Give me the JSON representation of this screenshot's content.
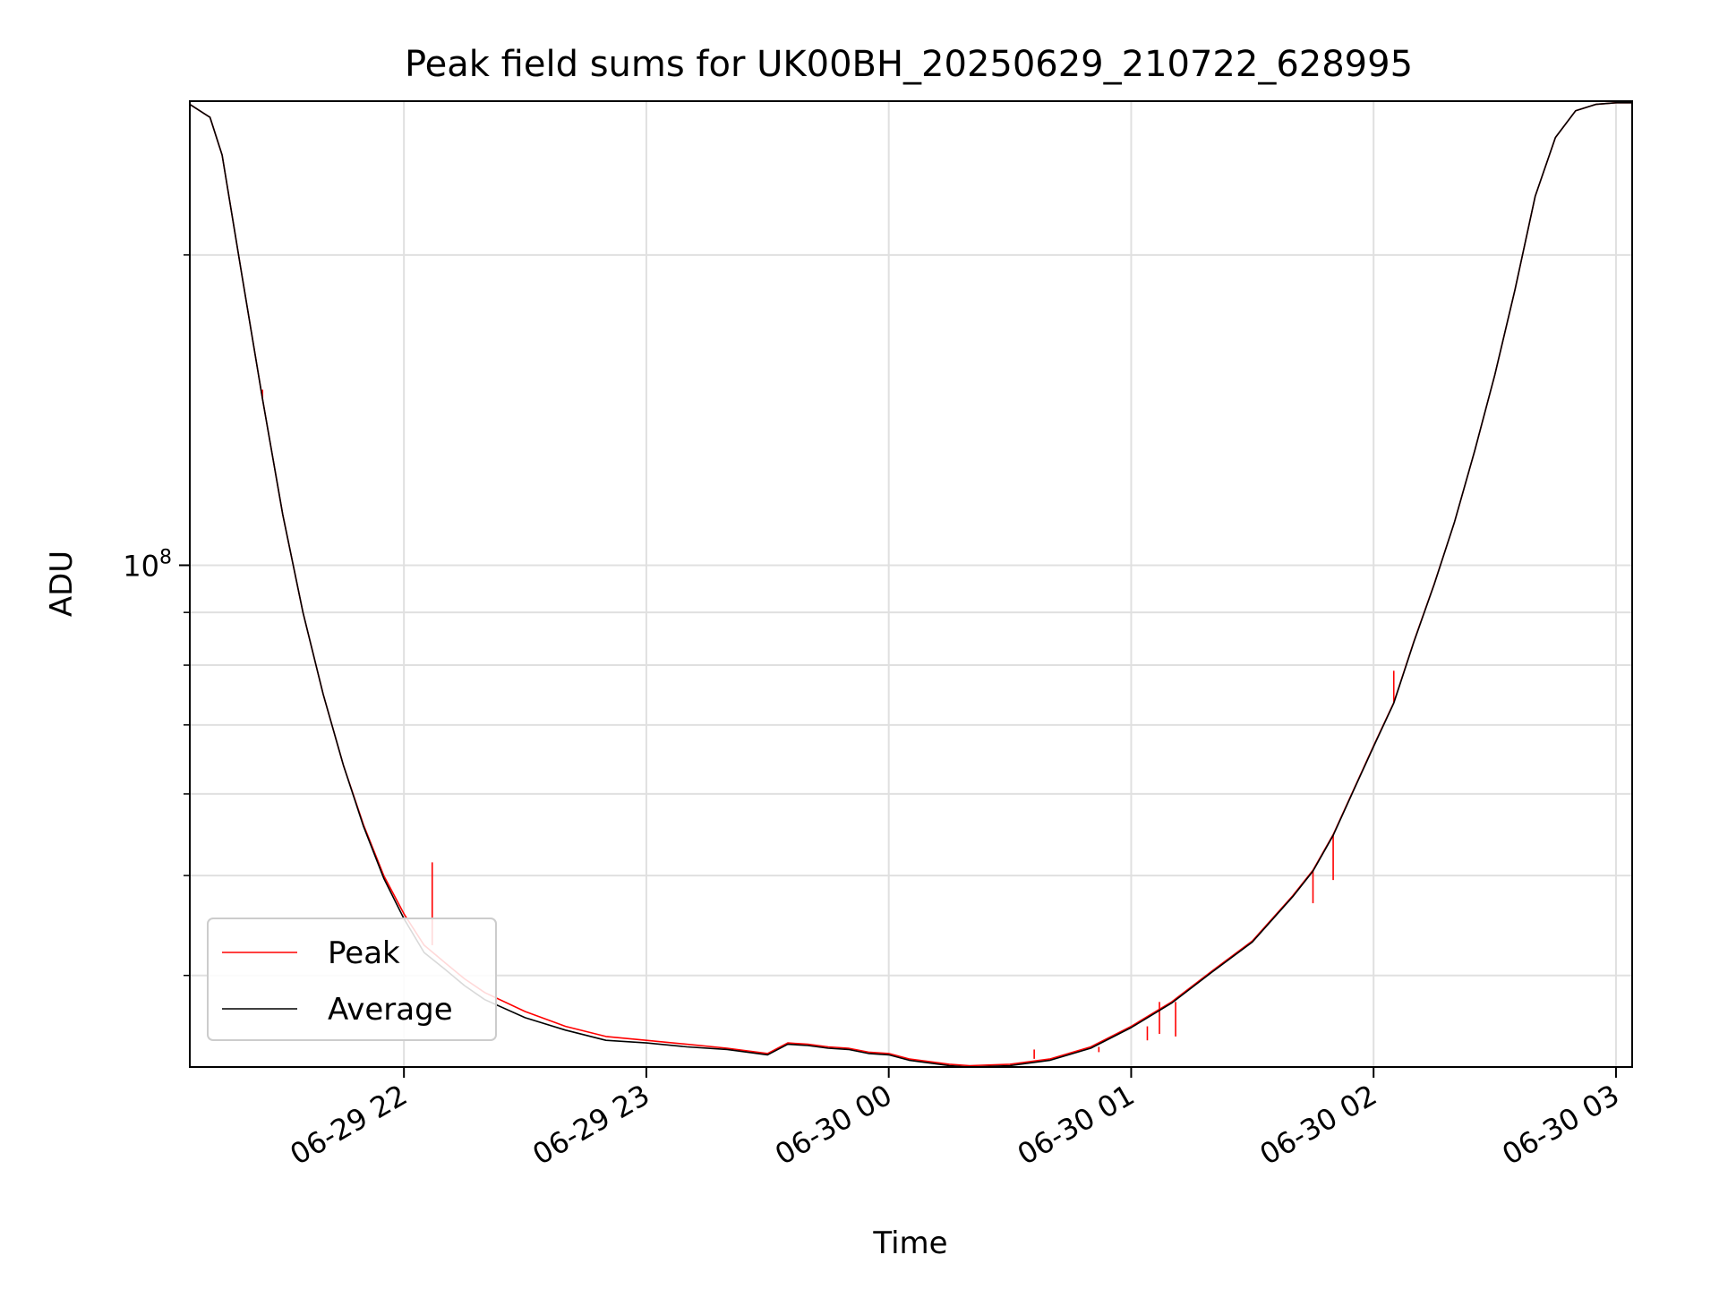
{
  "chart_data": {
    "type": "line",
    "title": "Peak field sums for UK00BH_20250629_210722_628995",
    "xlabel": "Time",
    "ylabel": "ADU",
    "yscale": "log",
    "ylim": [
      32600000,
      282000000
    ],
    "xlim": [
      "2025-06-29 21:07",
      "2025-06-30 03:04"
    ],
    "xtick_values": [
      "2025-06-29 22:00",
      "2025-06-29 23:00",
      "2025-06-30 00:00",
      "2025-06-30 01:00",
      "2025-06-30 02:00",
      "2025-06-30 03:00"
    ],
    "xtick_labels": [
      "06-29 22",
      "06-29 23",
      "06-30 00",
      "06-30 01",
      "06-30 02",
      "06-30 03"
    ],
    "ytick_major_values": [
      100000000
    ],
    "ytick_major_labels": [
      {
        "base": "10",
        "exp": "8"
      }
    ],
    "ytick_minor_values": [
      40000000,
      50000000,
      60000000,
      70000000,
      80000000,
      90000000,
      200000000
    ],
    "grid": true,
    "legend_position": "lower-left",
    "series": [
      {
        "name": "Peak",
        "color": "#ff0000",
        "x": [
          "2025-06-29 21:07",
          "2025-06-29 21:12",
          "2025-06-29 21:15",
          "2025-06-29 21:20",
          "2025-06-29 21:25",
          "2025-06-29 21:30",
          "2025-06-29 21:35",
          "2025-06-29 21:40",
          "2025-06-29 21:45",
          "2025-06-29 21:50",
          "2025-06-29 21:55",
          "2025-06-29 22:00",
          "2025-06-29 22:05",
          "2025-06-29 22:10",
          "2025-06-29 22:15",
          "2025-06-29 22:20",
          "2025-06-29 22:30",
          "2025-06-29 22:40",
          "2025-06-29 22:50",
          "2025-06-29 23:00",
          "2025-06-29 23:10",
          "2025-06-29 23:20",
          "2025-06-29 23:30",
          "2025-06-29 23:35",
          "2025-06-29 23:40",
          "2025-06-29 23:45",
          "2025-06-29 23:50",
          "2025-06-29 23:55",
          "2025-06-30 00:00",
          "2025-06-30 00:05",
          "2025-06-30 00:10",
          "2025-06-30 00:15",
          "2025-06-30 00:20",
          "2025-06-30 00:30",
          "2025-06-30 00:40",
          "2025-06-30 00:50",
          "2025-06-30 01:00",
          "2025-06-30 01:10",
          "2025-06-30 01:20",
          "2025-06-30 01:30",
          "2025-06-30 01:40",
          "2025-06-30 01:45",
          "2025-06-30 01:50",
          "2025-06-30 01:55",
          "2025-06-30 02:00",
          "2025-06-30 02:05",
          "2025-06-30 02:10",
          "2025-06-30 02:15",
          "2025-06-30 02:20",
          "2025-06-30 02:25",
          "2025-06-30 02:30",
          "2025-06-30 02:35",
          "2025-06-30 02:40",
          "2025-06-30 02:45",
          "2025-06-30 02:50",
          "2025-06-30 02:55",
          "2025-06-30 03:00",
          "2025-06-30 03:04"
        ],
        "y": [
          280000000,
          272000000,
          250000000,
          190000000,
          145000000,
          112000000,
          90000000,
          75000000,
          64000000,
          56000000,
          50000000,
          45900000,
          42800000,
          41200000,
          39700000,
          38500000,
          36900000,
          35700000,
          34900000,
          34600000,
          34300000,
          34000000,
          33600000,
          34400000,
          34300000,
          34100000,
          34000000,
          33700000,
          33600000,
          33200000,
          33000000,
          32800000,
          32700000,
          32800000,
          33200000,
          34100000,
          35700000,
          37700000,
          40400000,
          43200000,
          47800000,
          50600000,
          54800000,
          60500000,
          66800000,
          73600000,
          84400000,
          95900000,
          110000000,
          129000000,
          153000000,
          185000000,
          228000000,
          260000000,
          276000000,
          280000000,
          281000000,
          281000000
        ],
        "spikes": [
          {
            "x": "2025-06-29 21:25",
            "y": 148000000
          },
          {
            "x": "2025-06-29 22:07",
            "y": 51500000
          },
          {
            "x": "2025-06-30 00:36",
            "y": 33900000
          },
          {
            "x": "2025-06-30 00:52",
            "y": 33700000
          },
          {
            "x": "2025-06-30 01:04",
            "y": 34600000
          },
          {
            "x": "2025-06-30 01:07",
            "y": 35100000
          },
          {
            "x": "2025-06-30 01:11",
            "y": 34900000
          },
          {
            "x": "2025-06-30 01:45",
            "y": 47000000
          },
          {
            "x": "2025-06-30 01:50",
            "y": 49500000
          },
          {
            "x": "2025-06-30 02:05",
            "y": 79000000
          }
        ]
      },
      {
        "name": "Average",
        "color": "#000000",
        "x": [
          "2025-06-29 21:07",
          "2025-06-29 21:12",
          "2025-06-29 21:15",
          "2025-06-29 21:20",
          "2025-06-29 21:25",
          "2025-06-29 21:30",
          "2025-06-29 21:35",
          "2025-06-29 21:40",
          "2025-06-29 21:45",
          "2025-06-29 21:50",
          "2025-06-29 21:55",
          "2025-06-29 22:00",
          "2025-06-29 22:05",
          "2025-06-29 22:10",
          "2025-06-29 22:15",
          "2025-06-29 22:20",
          "2025-06-29 22:30",
          "2025-06-29 22:40",
          "2025-06-29 22:50",
          "2025-06-29 23:00",
          "2025-06-29 23:10",
          "2025-06-29 23:20",
          "2025-06-29 23:30",
          "2025-06-29 23:35",
          "2025-06-29 23:40",
          "2025-06-29 23:45",
          "2025-06-29 23:50",
          "2025-06-29 23:55",
          "2025-06-30 00:00",
          "2025-06-30 00:05",
          "2025-06-30 00:10",
          "2025-06-30 00:15",
          "2025-06-30 00:20",
          "2025-06-30 00:30",
          "2025-06-30 00:40",
          "2025-06-30 00:50",
          "2025-06-30 01:00",
          "2025-06-30 01:10",
          "2025-06-30 01:20",
          "2025-06-30 01:30",
          "2025-06-30 01:40",
          "2025-06-30 01:45",
          "2025-06-30 01:50",
          "2025-06-30 01:55",
          "2025-06-30 02:00",
          "2025-06-30 02:05",
          "2025-06-30 02:10",
          "2025-06-30 02:15",
          "2025-06-30 02:20",
          "2025-06-30 02:25",
          "2025-06-30 02:30",
          "2025-06-30 02:35",
          "2025-06-30 02:40",
          "2025-06-30 02:45",
          "2025-06-30 02:50",
          "2025-06-30 02:55",
          "2025-06-30 03:00",
          "2025-06-30 03:04"
        ],
        "y": [
          280000000,
          272000000,
          250000000,
          190000000,
          145000000,
          112000000,
          90000000,
          75000000,
          64000000,
          55800000,
          49700000,
          45400000,
          42100000,
          40600000,
          39100000,
          37900000,
          36400000,
          35400000,
          34600000,
          34400000,
          34100000,
          33900000,
          33500000,
          34300000,
          34200000,
          34000000,
          33900000,
          33600000,
          33500000,
          33100000,
          32900000,
          32700000,
          32600000,
          32700000,
          33100000,
          34000000,
          35600000,
          37600000,
          40300000,
          43100000,
          47700000,
          50500000,
          54700000,
          60400000,
          66700000,
          73500000,
          84300000,
          95800000,
          110000000,
          129000000,
          153000000,
          185000000,
          228000000,
          260000000,
          276000000,
          280000000,
          281000000,
          281000000
        ]
      }
    ]
  }
}
